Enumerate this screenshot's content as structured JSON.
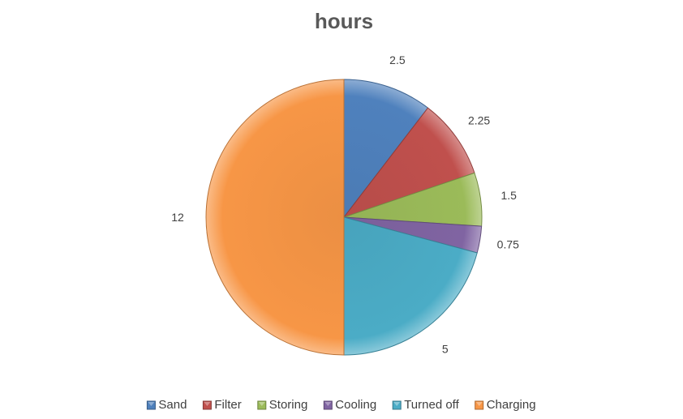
{
  "chart_data": {
    "type": "pie",
    "title": "hours",
    "categories": [
      "Sand",
      "Filter",
      "Storing",
      "Cooling",
      "Turned off",
      "Charging"
    ],
    "values": [
      2.5,
      2.25,
      1.5,
      0.75,
      5,
      12
    ],
    "data_labels": [
      "2.5",
      "2.25",
      "1.5",
      "0.75",
      "5",
      "12"
    ],
    "colors": [
      "#4F81BD",
      "#C0504D",
      "#9BBB59",
      "#8064A2",
      "#4BACC6",
      "#F79646"
    ],
    "start_angle_deg": 0,
    "direction": "clockwise",
    "legend_position": "bottom",
    "style": "3d-bevel"
  }
}
